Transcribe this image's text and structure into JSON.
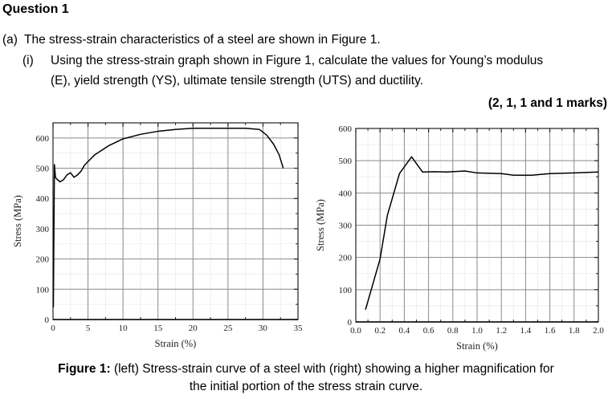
{
  "question": {
    "title": "Question 1",
    "part_a_label": "(a)",
    "part_a_text": "The stress-strain characteristics of a steel are shown in Figure 1.",
    "part_i_label": "(i)",
    "part_i_line1": "Using the stress-strain graph shown in Figure 1, calculate the values for Young’s modulus",
    "part_i_line2": "(E), yield strength (YS), ultimate tensile strength (UTS) and ductility.",
    "marks": "(2, 1, 1 and 1 marks)"
  },
  "caption": {
    "label": "Figure 1:",
    "line1": "(left) Stress-strain curve of a steel with (right) showing a higher magnification for",
    "line2": "the initial portion of the stress strain curve."
  },
  "chart_data": [
    {
      "type": "line",
      "title": "",
      "xlabel": "Strain (%)",
      "ylabel": "Stress (MPa)",
      "xlim": [
        0,
        35
      ],
      "ylim": [
        0,
        650
      ],
      "xticks": [
        "0",
        "5",
        "10",
        "15",
        "20",
        "25",
        "30",
        "35"
      ],
      "yticks": [
        "0",
        "100",
        "200",
        "300",
        "400",
        "500",
        "600"
      ],
      "grid": true,
      "series": [
        {
          "name": "stress-strain",
          "x": [
            0.05,
            0.2,
            0.35,
            0.5,
            1.0,
            1.5,
            2.0,
            2.5,
            3.0,
            3.5,
            4.0,
            4.5,
            5.0,
            6.0,
            8.0,
            10.0,
            12.5,
            15.0,
            17.5,
            20.0,
            22.5,
            25.0,
            27.5,
            29.5,
            30.5,
            31.5,
            32.3,
            32.9
          ],
          "y": [
            40,
            512,
            470,
            465,
            455,
            462,
            478,
            485,
            470,
            478,
            490,
            510,
            522,
            545,
            575,
            597,
            612,
            622,
            628,
            632,
            632,
            632,
            632,
            628,
            610,
            580,
            545,
            500
          ]
        }
      ]
    },
    {
      "type": "line",
      "title": "",
      "xlabel": "Strain (%)",
      "ylabel": "Stress (MPa)",
      "xlim": [
        0.0,
        2.0
      ],
      "ylim": [
        0,
        600
      ],
      "xticks": [
        "0.0",
        "0.2",
        "0.4",
        "0.6",
        "0.8",
        "1.0",
        "1.2",
        "1.4",
        "1.6",
        "1.8",
        "2.0"
      ],
      "yticks": [
        "0",
        "100",
        "200",
        "300",
        "400",
        "500",
        "600"
      ],
      "grid": true,
      "series": [
        {
          "name": "initial portion",
          "x": [
            0.08,
            0.2,
            0.26,
            0.36,
            0.46,
            0.55,
            0.65,
            0.75,
            0.9,
            1.0,
            1.2,
            1.3,
            1.45,
            1.6,
            1.8,
            2.0
          ],
          "y": [
            38,
            195,
            330,
            460,
            512,
            465,
            466,
            465,
            468,
            462,
            460,
            455,
            455,
            460,
            462,
            465
          ]
        }
      ]
    }
  ]
}
